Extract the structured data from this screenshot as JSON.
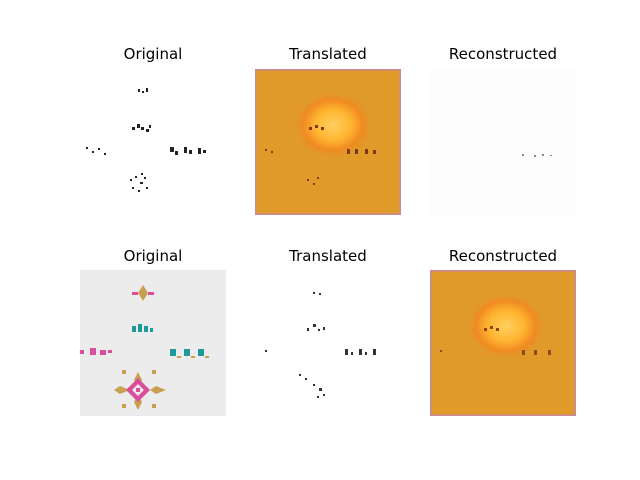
{
  "rows": [
    {
      "titles": [
        "Original",
        "Translated",
        "Reconstructed"
      ]
    },
    {
      "titles": [
        "Original",
        "Translated",
        "Reconstructed"
      ]
    }
  ],
  "colors": {
    "orange_bg": "#e09a2a",
    "orange_border": "#c98a7a",
    "glow_center": "#ffb52a",
    "fabric": "#eeeeee",
    "pink": "#d94f9c",
    "teal": "#1e9a9a",
    "gold": "#c9a050",
    "dark": "#222222"
  }
}
